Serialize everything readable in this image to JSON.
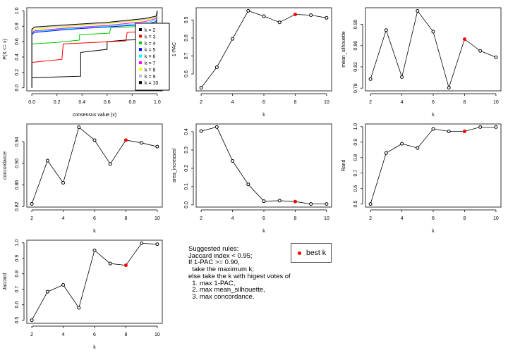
{
  "chart_data": [
    {
      "type": "line",
      "xlabel": "consensus value (x)",
      "ylabel": "P(X <= x)",
      "xlim": [
        -0.04,
        1.04
      ],
      "ylim": [
        -0.04,
        1.04
      ],
      "xticks": [
        "0.0",
        "0.2",
        "0.4",
        "0.6",
        "0.8",
        "1.0"
      ],
      "yticks": [
        "0.0",
        "0.2",
        "0.4",
        "0.6",
        "0.8",
        "1.0"
      ],
      "legend_position": "bottom-right",
      "series": [
        {
          "name": "k = 2",
          "color": "#000000",
          "x": [
            0,
            0,
            0.01,
            0.2,
            0.39,
            0.39,
            0.6,
            0.6,
            0.75,
            0.98,
            0.99,
            1
          ],
          "y": [
            0,
            0.13,
            0.13,
            0.14,
            0.15,
            0.46,
            0.5,
            0.6,
            0.62,
            0.63,
            0.65,
            1
          ]
        },
        {
          "name": "k = 3",
          "color": "#ff0000",
          "x": [
            0,
            0,
            0.24,
            0.25,
            0.5,
            0.75,
            0.76,
            0.98,
            0.99,
            1
          ],
          "y": [
            0,
            0.33,
            0.37,
            0.57,
            0.59,
            0.61,
            0.72,
            0.74,
            0.76,
            1
          ]
        },
        {
          "name": "k = 4",
          "color": "#00cd00",
          "x": [
            0,
            0,
            0.2,
            0.38,
            0.38,
            0.62,
            0.63,
            0.9,
            0.99,
            1
          ],
          "y": [
            0,
            0.57,
            0.59,
            0.62,
            0.69,
            0.71,
            0.78,
            0.8,
            0.82,
            1
          ]
        },
        {
          "name": "k = 5",
          "color": "#0000ff",
          "x": [
            0,
            0,
            0.02,
            0.3,
            0.6,
            0.9,
            0.99,
            1
          ],
          "y": [
            0,
            0.69,
            0.72,
            0.76,
            0.79,
            0.82,
            0.86,
            1
          ]
        },
        {
          "name": "k = 6",
          "color": "#00ffff",
          "x": [
            0,
            0,
            0.02,
            0.3,
            0.6,
            0.9,
            0.99,
            1
          ],
          "y": [
            0,
            0.7,
            0.73,
            0.77,
            0.8,
            0.84,
            0.88,
            1
          ]
        },
        {
          "name": "k = 7",
          "color": "#ff00ff",
          "x": [
            0,
            0,
            0.02,
            0.3,
            0.6,
            0.9,
            0.99,
            1
          ],
          "y": [
            0,
            0.71,
            0.74,
            0.78,
            0.81,
            0.86,
            0.9,
            1
          ]
        },
        {
          "name": "k = 8",
          "color": "#ffff00",
          "x": [
            0,
            0,
            0.02,
            0.3,
            0.6,
            0.9,
            0.99,
            1
          ],
          "y": [
            0,
            0.73,
            0.76,
            0.8,
            0.83,
            0.88,
            0.91,
            1
          ]
        },
        {
          "name": "k = 9",
          "color": "#bebebe",
          "x": [
            0,
            0,
            0.02,
            0.3,
            0.6,
            0.9,
            0.99,
            1
          ],
          "y": [
            0,
            0.75,
            0.78,
            0.81,
            0.84,
            0.89,
            0.92,
            1
          ]
        },
        {
          "name": "k = 10",
          "color": "#000000",
          "x": [
            0,
            0,
            0.02,
            0.3,
            0.6,
            0.9,
            0.99,
            1
          ],
          "y": [
            0,
            0.76,
            0.79,
            0.82,
            0.85,
            0.9,
            0.93,
            1
          ]
        }
      ]
    },
    {
      "type": "line",
      "xlabel": "k",
      "ylabel": "1-PAC",
      "x": [
        2,
        3,
        4,
        5,
        6,
        7,
        8,
        9,
        10
      ],
      "values": [
        0.523,
        0.637,
        0.795,
        0.951,
        0.921,
        0.887,
        0.931,
        0.927,
        0.912
      ],
      "ylim": [
        0.506,
        0.968
      ],
      "yticks": [
        0.6,
        0.7,
        0.8,
        0.9
      ],
      "best_k": 8
    },
    {
      "type": "line",
      "xlabel": "k",
      "ylabel": "mean_silhouette",
      "x": [
        2,
        3,
        4,
        5,
        6,
        7,
        8,
        9,
        10
      ],
      "values": [
        0.797,
        0.889,
        0.801,
        0.925,
        0.886,
        0.781,
        0.872,
        0.85,
        0.838
      ],
      "ylim": [
        0.775,
        0.931
      ],
      "yticks": [
        0.78,
        0.82,
        0.86,
        0.9
      ],
      "best_k": 8
    },
    {
      "type": "line",
      "xlabel": "k",
      "ylabel": "concordance",
      "x": [
        2,
        3,
        4,
        5,
        6,
        7,
        8,
        9,
        10
      ],
      "values": [
        0.825,
        0.905,
        0.864,
        0.967,
        0.943,
        0.899,
        0.943,
        0.938,
        0.931
      ],
      "ylim": [
        0.819,
        0.973
      ],
      "yticks": [
        0.82,
        0.86,
        0.9,
        0.94
      ],
      "best_k": 8
    },
    {
      "type": "line",
      "xlabel": "k",
      "ylabel": "area_increased",
      "x": [
        2,
        3,
        4,
        5,
        6,
        7,
        8,
        9,
        10
      ],
      "values": [
        0.403,
        0.425,
        0.24,
        0.112,
        0.02,
        0.023,
        0.018,
        0.005,
        0.005
      ],
      "ylim": [
        -0.012,
        0.442
      ],
      "yticks": [
        0.0,
        0.1,
        0.2,
        0.3,
        0.4
      ],
      "best_k": 8
    },
    {
      "type": "line",
      "xlabel": "k",
      "ylabel": "Rand",
      "x": [
        2,
        3,
        4,
        5,
        6,
        7,
        8,
        9,
        10
      ],
      "values": [
        0.5,
        0.829,
        0.889,
        0.862,
        0.985,
        0.969,
        0.969,
        0.997,
        0.997
      ],
      "ylim": [
        0.48,
        1.017
      ],
      "yticks": [
        0.5,
        0.6,
        0.7,
        0.8,
        0.9,
        1.0
      ],
      "best_k": 8
    },
    {
      "type": "line",
      "xlabel": "k",
      "ylabel": "Jaccard",
      "x": [
        2,
        3,
        4,
        5,
        6,
        7,
        8,
        9,
        10
      ],
      "values": [
        0.5,
        0.684,
        0.728,
        0.58,
        0.951,
        0.866,
        0.855,
        0.997,
        0.991
      ],
      "ylim": [
        0.48,
        1.017
      ],
      "yticks": [
        0.5,
        0.6,
        0.7,
        0.8,
        0.9,
        1.0
      ],
      "best_k": 8
    }
  ],
  "best_color": "#ff0000",
  "rules_text": "Suggested rules:\nJaccard index < 0.95;\nIf 1-PAC >= 0.90,\n  take the maximum k;\nelse take the k with higest votes of\n  1. max 1-PAC,\n  2. max mean_silhouette,\n  3. max concordance.",
  "best_legend_label": "best k"
}
